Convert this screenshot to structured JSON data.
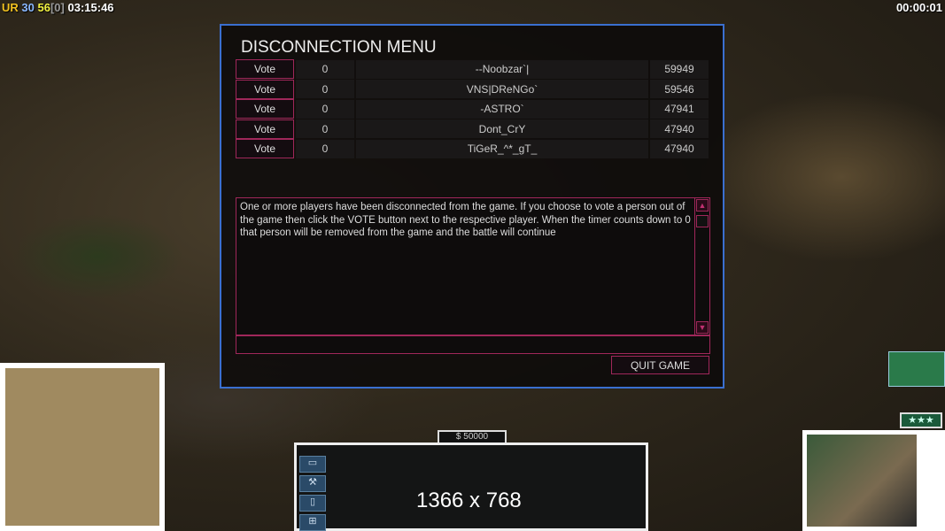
{
  "hud": {
    "tag": "UR",
    "a": "30",
    "b": "56",
    "c": "[0]",
    "time_left": "03:15:46",
    "time_right": "00:00:01"
  },
  "dialog": {
    "title": "DISCONNECTION MENU",
    "players": [
      {
        "vote_label": "Vote",
        "votes": "0",
        "name": "--Noobzar`|",
        "ping": "59949"
      },
      {
        "vote_label": "Vote",
        "votes": "0",
        "name": "VNS|DReNGo`",
        "ping": "59546"
      },
      {
        "vote_label": "Vote",
        "votes": "0",
        "name": "-ASTRO`",
        "ping": "47941"
      },
      {
        "vote_label": "Vote",
        "votes": "0",
        "name": "Dont_CrY",
        "ping": "47940"
      },
      {
        "vote_label": "Vote",
        "votes": "0",
        "name": "TiGeR_^*_gT_",
        "ping": "47940"
      }
    ],
    "message": "One or more players have been disconnected from the game. If you choose to vote a person out of the game then click the VOTE button next to the respective player. When the timer counts down to 0 that person will be removed from the game and the battle will continue",
    "quit_label": "QUIT GAME"
  },
  "command_bar": {
    "money": "$ 50000",
    "overlay_text": "1366 x 768"
  },
  "general": {
    "stars": "★★★"
  },
  "colors": {
    "dialog_border": "#3a6fd0",
    "accent": "#a0275a"
  }
}
